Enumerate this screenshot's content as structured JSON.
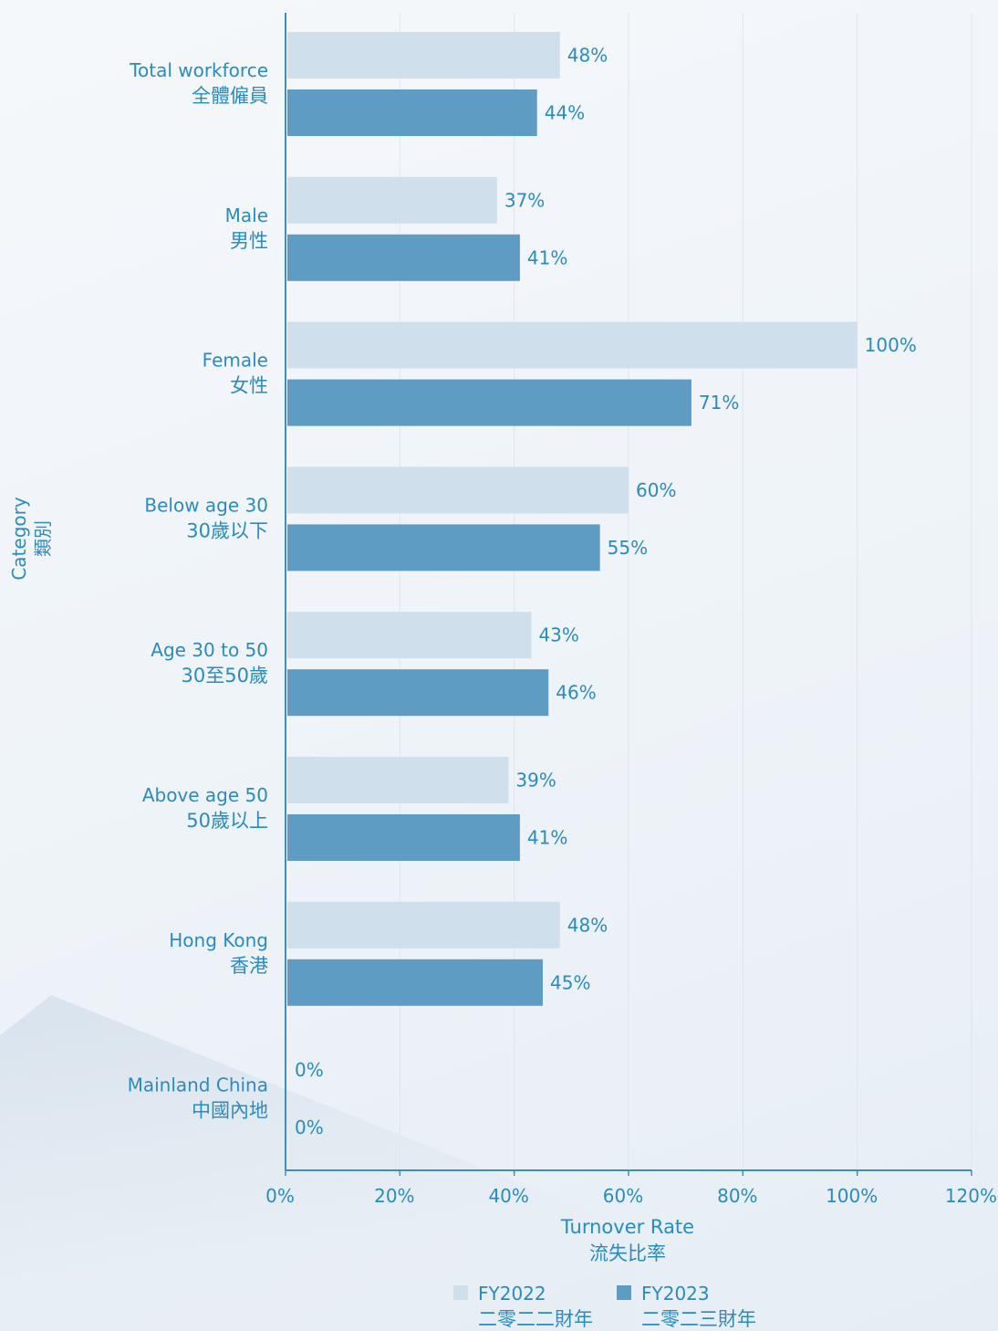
{
  "chart_data": {
    "type": "bar",
    "orientation": "horizontal",
    "categories": [
      {
        "en": "Total workforce",
        "zh": "全體僱員"
      },
      {
        "en": "Male",
        "zh": "男性"
      },
      {
        "en": "Female",
        "zh": "女性"
      },
      {
        "en": "Below age 30",
        "zh": "30歲以下"
      },
      {
        "en": "Age 30 to 50",
        "zh": "30至50歲"
      },
      {
        "en": "Above age 50",
        "zh": "50歲以上"
      },
      {
        "en": "Hong Kong",
        "zh": "香港"
      },
      {
        "en": "Mainland China",
        "zh": "中國內地"
      }
    ],
    "series": [
      {
        "name": "FY2022",
        "name_zh": "二零二二財年",
        "color": "#cfdfeb",
        "values": [
          48,
          37,
          100,
          60,
          43,
          39,
          48,
          0
        ],
        "labels": [
          "48%",
          "37%",
          "100%",
          "60%",
          "43%",
          "39%",
          "48%",
          "0%"
        ]
      },
      {
        "name": "FY2023",
        "name_zh": "二零二三財年",
        "color": "#5f9cc4",
        "values": [
          44,
          41,
          71,
          55,
          46,
          41,
          45,
          0
        ],
        "labels": [
          "44%",
          "41%",
          "71%",
          "55%",
          "46%",
          "41%",
          "45%",
          "0%"
        ]
      }
    ],
    "xlabel": {
      "en": "Turnover Rate",
      "zh": "流失比率"
    },
    "ylabel": {
      "en": "Category",
      "zh": "類別"
    },
    "xlim": [
      0,
      120
    ],
    "xticks": [
      0,
      20,
      40,
      60,
      80,
      100,
      120
    ],
    "xtick_labels": [
      "0%",
      "20%",
      "40%",
      "60%",
      "80%",
      "100%",
      "120%"
    ],
    "grid": true,
    "legend_position": "bottom-center",
    "text_color": "#2a8bbf"
  }
}
